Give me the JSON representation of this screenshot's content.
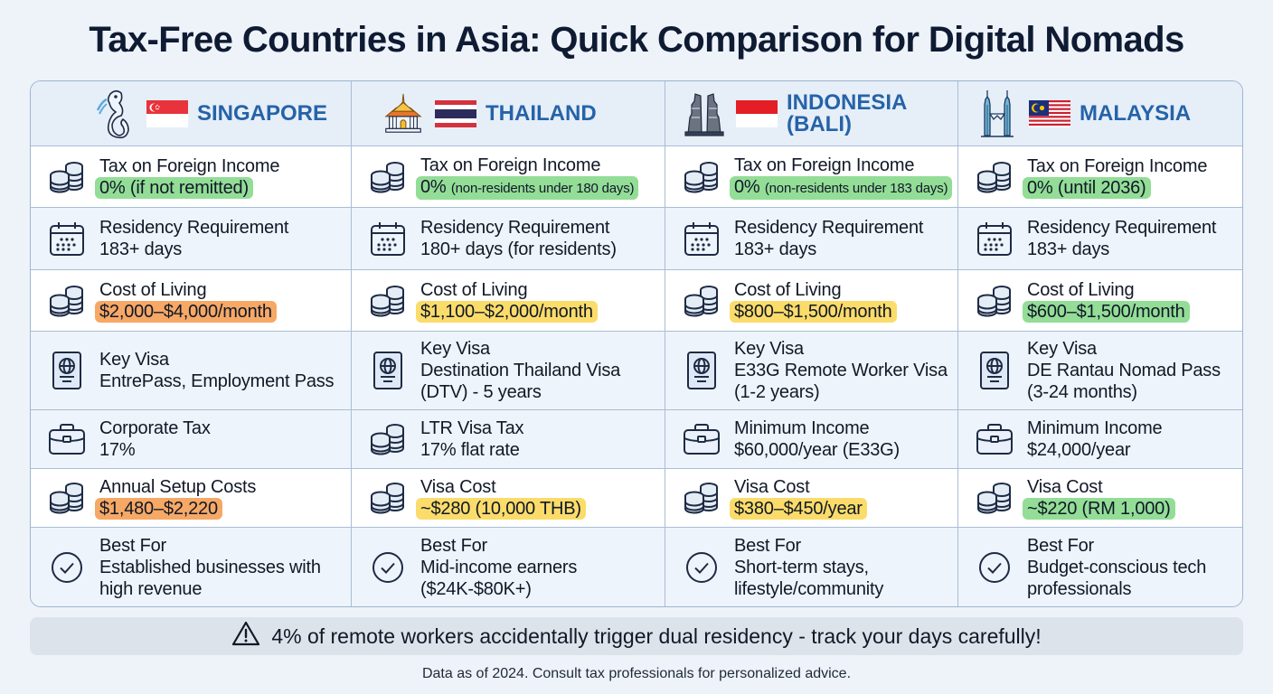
{
  "title": "Tax-Free Countries in Asia: Quick Comparison for Digital Nomads",
  "colors": {
    "country_header": "#2563a8",
    "highlight_green": "#93dd97",
    "highlight_orange": "#f6a866",
    "highlight_yellow": "#fbdc6a",
    "warning_bg": "#dde3ea"
  },
  "countries": [
    {
      "name": "SINGAPORE",
      "landmark_icon": "merlion-icon",
      "flag_icon": "singapore-flag-icon",
      "rows": [
        {
          "icon": "coins-icon",
          "label": "Tax on Foreign Income",
          "value": "0% (if not remitted)",
          "value_small": "",
          "highlight": "green"
        },
        {
          "icon": "calendar-icon",
          "label": "Residency Requirement",
          "value": "183+ days",
          "value_small": "",
          "highlight": ""
        },
        {
          "icon": "coins-icon",
          "label": "Cost of Living",
          "value": "$2,000–$4,000/month",
          "value_small": "",
          "highlight": "orange"
        },
        {
          "icon": "passport-icon",
          "label": "Key Visa",
          "value": "EntrePass, Employment Pass",
          "value_small": "",
          "highlight": ""
        },
        {
          "icon": "briefcase-icon",
          "label": "Corporate Tax",
          "value": "17%",
          "value_small": "",
          "highlight": ""
        },
        {
          "icon": "coins-icon",
          "label": "Annual Setup Costs",
          "value": "$1,480–$2,220",
          "value_small": "",
          "highlight": "orange"
        },
        {
          "icon": "check-circle-icon",
          "label": "Best For",
          "value": "Established businesses with high revenue",
          "value_small": "",
          "highlight": ""
        }
      ]
    },
    {
      "name": "THAILAND",
      "landmark_icon": "thai-temple-icon",
      "flag_icon": "thailand-flag-icon",
      "rows": [
        {
          "icon": "coins-icon",
          "label": "Tax on Foreign Income",
          "value": "0%",
          "value_small": "(non-residents under 180 days)",
          "highlight": "green"
        },
        {
          "icon": "calendar-icon",
          "label": "Residency Requirement",
          "value": "180+ days (for residents)",
          "value_small": "",
          "highlight": ""
        },
        {
          "icon": "coins-icon",
          "label": "Cost of Living",
          "value": "$1,100–$2,000/month",
          "value_small": "",
          "highlight": "yellow"
        },
        {
          "icon": "passport-icon",
          "label": "Key Visa",
          "value": "Destination Thailand Visa (DTV) - 5 years",
          "value_small": "",
          "highlight": ""
        },
        {
          "icon": "coins-icon",
          "label": "LTR Visa Tax",
          "value": "17% flat rate",
          "value_small": "",
          "highlight": ""
        },
        {
          "icon": "coins-icon",
          "label": "Visa Cost",
          "value": "~$280 (10,000 THB)",
          "value_small": "",
          "highlight": "yellow"
        },
        {
          "icon": "check-circle-icon",
          "label": "Best For",
          "value": "Mid-income earners ($24K-$80K+)",
          "value_small": "",
          "highlight": ""
        }
      ]
    },
    {
      "name": "INDONESIA (BALI)",
      "landmark_icon": "bali-gate-icon",
      "flag_icon": "indonesia-flag-icon",
      "rows": [
        {
          "icon": "coins-icon",
          "label": "Tax on Foreign Income",
          "value": "0%",
          "value_small": "(non-residents under 183 days)",
          "highlight": "green"
        },
        {
          "icon": "calendar-icon",
          "label": "Residency Requirement",
          "value": "183+ days",
          "value_small": "",
          "highlight": ""
        },
        {
          "icon": "coins-icon",
          "label": "Cost of Living",
          "value": "$800–$1,500/month",
          "value_small": "",
          "highlight": "yellow"
        },
        {
          "icon": "passport-icon",
          "label": "Key Visa",
          "value": "E33G Remote Worker Visa (1-2 years)",
          "value_small": "",
          "highlight": ""
        },
        {
          "icon": "briefcase-icon",
          "label": "Minimum Income",
          "value": "$60,000/year (E33G)",
          "value_small": "",
          "highlight": ""
        },
        {
          "icon": "coins-icon",
          "label": "Visa Cost",
          "value": "$380–$450/year",
          "value_small": "",
          "highlight": "yellow"
        },
        {
          "icon": "check-circle-icon",
          "label": "Best For",
          "value": "Short-term stays, lifestyle/community",
          "value_small": "",
          "highlight": ""
        }
      ]
    },
    {
      "name": "MALAYSIA",
      "landmark_icon": "petronas-towers-icon",
      "flag_icon": "malaysia-flag-icon",
      "rows": [
        {
          "icon": "coins-icon",
          "label": "Tax on Foreign Income",
          "value": "0% (until 2036)",
          "value_small": "",
          "highlight": "green"
        },
        {
          "icon": "calendar-icon",
          "label": "Residency Requirement",
          "value": "183+ days",
          "value_small": "",
          "highlight": ""
        },
        {
          "icon": "coins-icon",
          "label": "Cost of Living",
          "value": "$600–$1,500/month",
          "value_small": "",
          "highlight": "green"
        },
        {
          "icon": "passport-icon",
          "label": "Key Visa",
          "value": "DE Rantau Nomad Pass (3-24 months)",
          "value_small": "",
          "highlight": ""
        },
        {
          "icon": "briefcase-icon",
          "label": "Minimum Income",
          "value": "$24,000/year",
          "value_small": "",
          "highlight": ""
        },
        {
          "icon": "coins-icon",
          "label": "Visa Cost",
          "value": "~$220 (RM 1,000)",
          "value_small": "",
          "highlight": "green"
        },
        {
          "icon": "check-circle-icon",
          "label": "Best For",
          "value": "Budget-conscious tech professionals",
          "value_small": "",
          "highlight": ""
        }
      ]
    }
  ],
  "warning": {
    "icon": "warning-triangle-icon",
    "text": "4% of remote workers accidentally trigger dual residency - track your days carefully!"
  },
  "footer": "Data as of 2024. Consult tax professionals for personalized advice."
}
